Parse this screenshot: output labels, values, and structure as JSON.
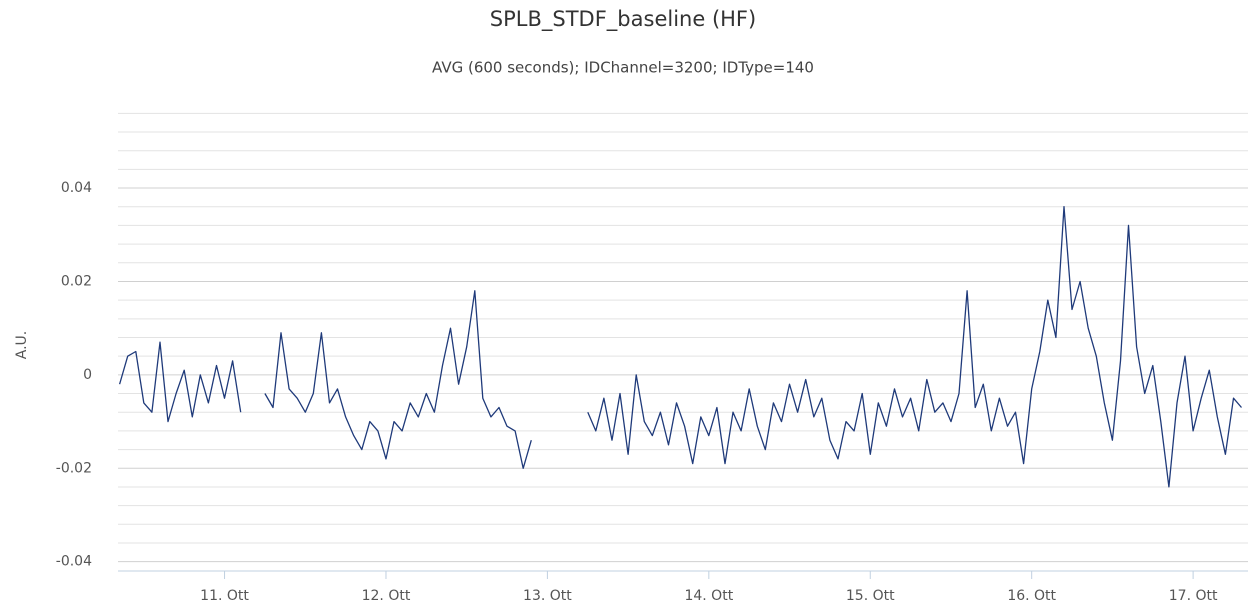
{
  "chart_data": {
    "type": "line",
    "title": "SPLB_STDF_baseline (HF)",
    "subtitle": "AVG (600 seconds); IDChannel=3200; IDType=140",
    "y_label": "A.U.",
    "x": [
      10.35,
      10.4,
      10.45,
      10.5,
      10.55,
      10.6,
      10.65,
      10.7,
      10.75,
      10.8,
      10.85,
      10.9,
      10.95,
      11.0,
      11.05,
      11.1,
      11.15,
      11.2,
      11.25,
      11.3,
      11.35,
      11.4,
      11.45,
      11.5,
      11.55,
      11.6,
      11.65,
      11.7,
      11.75,
      11.8,
      11.85,
      11.9,
      11.95,
      12.0,
      12.05,
      12.1,
      12.15,
      12.2,
      12.25,
      12.3,
      12.35,
      12.4,
      12.45,
      12.5,
      12.55,
      12.6,
      12.65,
      12.7,
      12.75,
      12.8,
      12.85,
      12.9,
      12.95,
      13.0,
      13.05,
      13.1,
      13.15,
      13.2,
      13.25,
      13.3,
      13.35,
      13.4,
      13.45,
      13.5,
      13.55,
      13.6,
      13.65,
      13.7,
      13.75,
      13.8,
      13.85,
      13.9,
      13.95,
      14.0,
      14.05,
      14.1,
      14.15,
      14.2,
      14.25,
      14.3,
      14.35,
      14.4,
      14.45,
      14.5,
      14.55,
      14.6,
      14.65,
      14.7,
      14.75,
      14.8,
      14.85,
      14.9,
      14.95,
      15.0,
      15.05,
      15.1,
      15.15,
      15.2,
      15.25,
      15.3,
      15.35,
      15.4,
      15.45,
      15.5,
      15.55,
      15.6,
      15.65,
      15.7,
      15.75,
      15.8,
      15.85,
      15.9,
      15.95,
      16.0,
      16.05,
      16.1,
      16.15,
      16.2,
      16.25,
      16.3,
      16.35,
      16.4,
      16.45,
      16.5,
      16.55,
      16.6,
      16.65,
      16.7,
      16.75,
      16.8,
      16.85,
      16.9,
      16.95,
      17.0,
      17.05,
      17.1,
      17.15,
      17.2,
      17.25,
      17.3
    ],
    "series": [
      {
        "name": "SPLB_STDF_baseline (HF)",
        "color": "#1f3a7a",
        "values": [
          -0.002,
          0.004,
          0.005,
          -0.006,
          -0.008,
          0.007,
          -0.01,
          -0.004,
          0.001,
          -0.009,
          0.0,
          -0.006,
          0.002,
          -0.005,
          0.003,
          -0.008,
          null,
          null,
          -0.004,
          -0.007,
          0.009,
          -0.003,
          -0.005,
          -0.008,
          -0.004,
          0.009,
          -0.006,
          -0.003,
          -0.009,
          -0.013,
          -0.016,
          -0.01,
          -0.012,
          -0.018,
          -0.01,
          -0.012,
          -0.006,
          -0.009,
          -0.004,
          -0.008,
          0.002,
          0.01,
          -0.002,
          0.006,
          0.018,
          -0.005,
          -0.009,
          -0.007,
          -0.011,
          -0.012,
          -0.02,
          -0.014,
          null,
          null,
          null,
          null,
          null,
          null,
          -0.008,
          -0.012,
          -0.005,
          -0.014,
          -0.004,
          -0.017,
          0.0,
          -0.01,
          -0.013,
          -0.008,
          -0.015,
          -0.006,
          -0.011,
          -0.019,
          -0.009,
          -0.013,
          -0.007,
          -0.019,
          -0.008,
          -0.012,
          -0.003,
          -0.011,
          -0.016,
          -0.006,
          -0.01,
          -0.002,
          -0.008,
          -0.001,
          -0.009,
          -0.005,
          -0.014,
          -0.018,
          -0.01,
          -0.012,
          -0.004,
          -0.017,
          -0.006,
          -0.011,
          -0.003,
          -0.009,
          -0.005,
          -0.012,
          -0.001,
          -0.008,
          -0.006,
          -0.01,
          -0.004,
          0.018,
          -0.007,
          -0.002,
          -0.012,
          -0.005,
          -0.011,
          -0.008,
          -0.019,
          -0.003,
          0.005,
          0.016,
          0.008,
          0.036,
          0.014,
          0.02,
          0.01,
          0.004,
          -0.006,
          -0.014,
          0.003,
          0.032,
          0.006,
          -0.004,
          0.002,
          -0.01,
          -0.024,
          -0.006,
          0.004,
          -0.012,
          -0.005,
          0.001,
          -0.009,
          -0.017,
          -0.005,
          -0.007
        ]
      }
    ],
    "xlim": [
      10.34,
      17.34
    ],
    "xticks": [
      {
        "value": 11,
        "label": "11. Ott"
      },
      {
        "value": 12,
        "label": "12. Ott"
      },
      {
        "value": 13,
        "label": "13. Ott"
      },
      {
        "value": 14,
        "label": "14. Ott"
      },
      {
        "value": 15,
        "label": "15. Ott"
      },
      {
        "value": 16,
        "label": "16. Ott"
      },
      {
        "value": 17,
        "label": "17. Ott"
      }
    ],
    "ylim": [
      -0.042,
      0.058
    ],
    "yticks": [
      -0.04,
      -0.02,
      0,
      0.02,
      0.04
    ],
    "minor_yticks": [
      -0.036,
      -0.032,
      -0.028,
      -0.024,
      -0.016,
      -0.012,
      -0.008,
      -0.004,
      0.004,
      0.008,
      0.012,
      0.016,
      0.024,
      0.028,
      0.032,
      0.036,
      0.044,
      0.048,
      0.052,
      0.056
    ],
    "grid": true
  }
}
